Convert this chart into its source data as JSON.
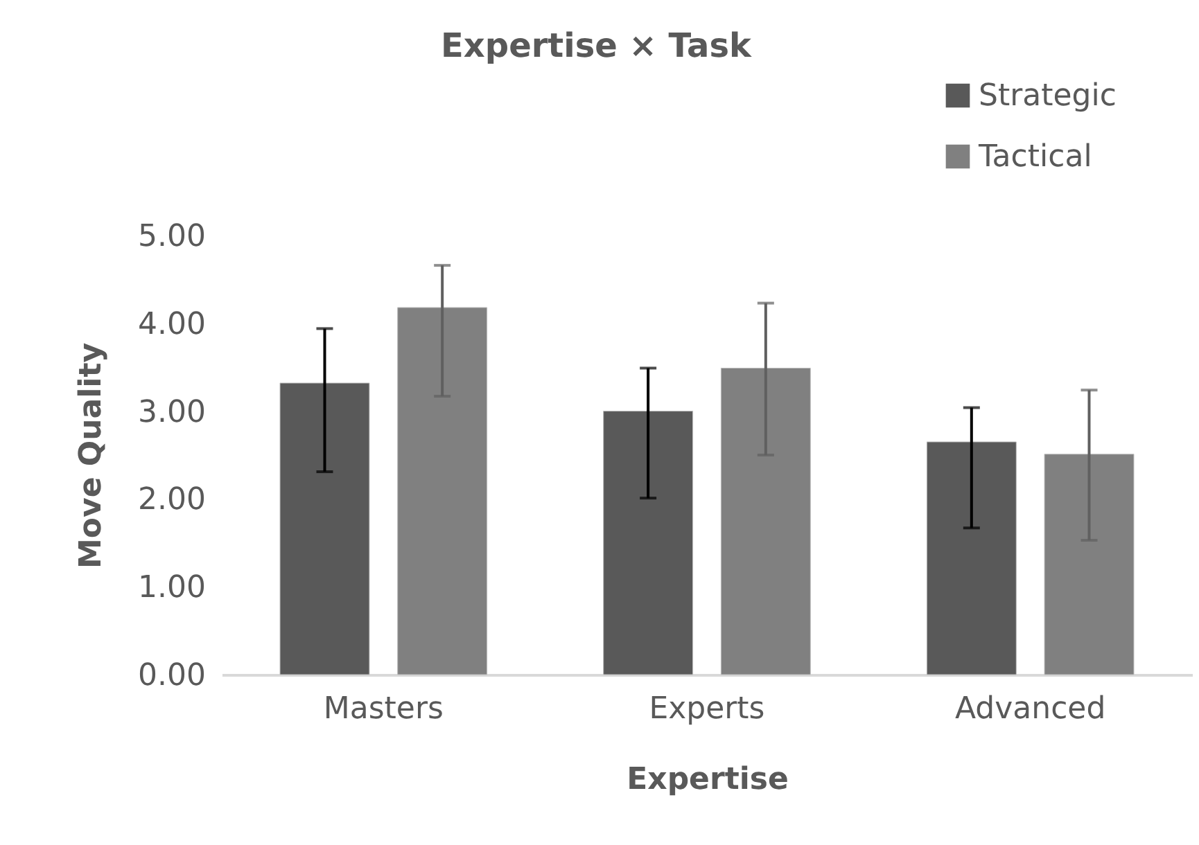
{
  "chart_data": {
    "type": "bar",
    "title": "Expertise × Task",
    "xlabel": "Expertise",
    "ylabel": "Move Quality",
    "categories": [
      "Masters",
      "Experts",
      "Advanced"
    ],
    "series": [
      {
        "name": "Strategic",
        "color": "#595959",
        "values": [
          3.32,
          3.0,
          2.65
        ],
        "errors": [
          [
            2.31,
            3.94
          ],
          [
            2.01,
            3.49
          ],
          [
            1.67,
            3.04
          ]
        ]
      },
      {
        "name": "Tactical",
        "color": "#808080",
        "values": [
          4.18,
          3.49,
          2.51
        ],
        "errors": [
          [
            3.17,
            4.66
          ],
          [
            2.5,
            4.23
          ],
          [
            1.53,
            3.24
          ]
        ]
      }
    ],
    "ylim": [
      0,
      5
    ],
    "yticks": [
      {
        "value": 0,
        "label": "0.00"
      },
      {
        "value": 1,
        "label": "1.00"
      },
      {
        "value": 2,
        "label": "2.00"
      },
      {
        "value": 3,
        "label": "3.00"
      },
      {
        "value": 4,
        "label": "4.00"
      },
      {
        "value": 5,
        "label": "5.00"
      }
    ],
    "grid": false,
    "legend": "top right"
  }
}
